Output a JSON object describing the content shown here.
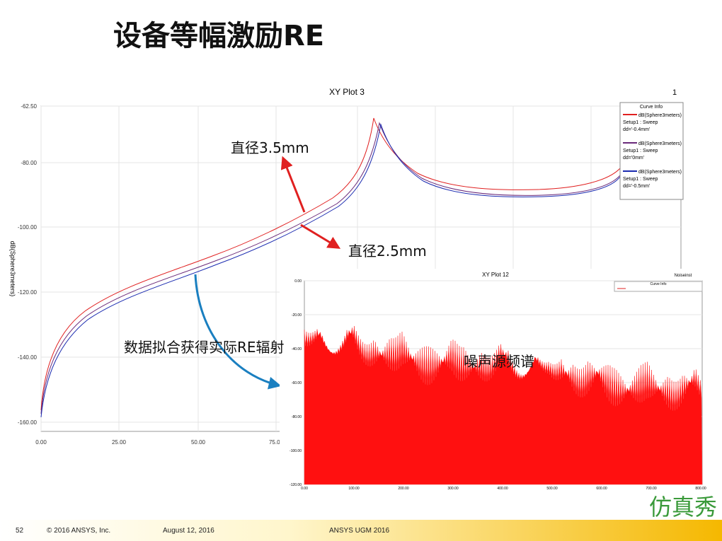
{
  "slide": {
    "title": "设备等幅激励RE",
    "plot1": {
      "title": "XY Plot 3",
      "corner": "1",
      "y_label": "dB(Sphere3meters)",
      "yticks": [
        "-62.50",
        "-80.00",
        "-100.00",
        "-120.00",
        "-140.00",
        "-160.00"
      ],
      "xticks": [
        "0.00",
        "25.00",
        "50.00",
        "75.00"
      ],
      "legend": {
        "title": "Curve Info",
        "entries": [
          {
            "name": "dB(Sphere3meters)",
            "setup": "Setup1 : Sweep",
            "param": "dd='-0.4mm'"
          },
          {
            "name": "dB(Sphere3meters)",
            "setup": "Setup1 : Sweep",
            "param": "dd='0mm'"
          },
          {
            "name": "dB(Sphere3meters)",
            "setup": "Setup1 : Sweep",
            "param": "dd='-0.5mm'"
          }
        ]
      }
    },
    "plot2": {
      "title": "XY Plot 12",
      "corner": "Noiseinst",
      "legend_title": "Curve Info",
      "yticks": [
        "0.00",
        "-20.00",
        "-40.00",
        "-60.00",
        "-80.00",
        "-100.00",
        "-120.00"
      ],
      "xticks": [
        "0.00",
        "100.00",
        "200.00",
        "300.00",
        "400.00",
        "500.00",
        "600.00",
        "700.00",
        "800.00"
      ]
    },
    "annotations": [
      "直径3.5mm",
      "直径2.5mm",
      "数据拟合获得实际RE辐射",
      "噪声源频谱"
    ],
    "footer": {
      "page": "52",
      "copyright": "© 2016 ANSYS, Inc.",
      "date": "August 12, 2016",
      "event": "ANSYS UGM 2016"
    },
    "logo": "仿真秀"
  }
}
